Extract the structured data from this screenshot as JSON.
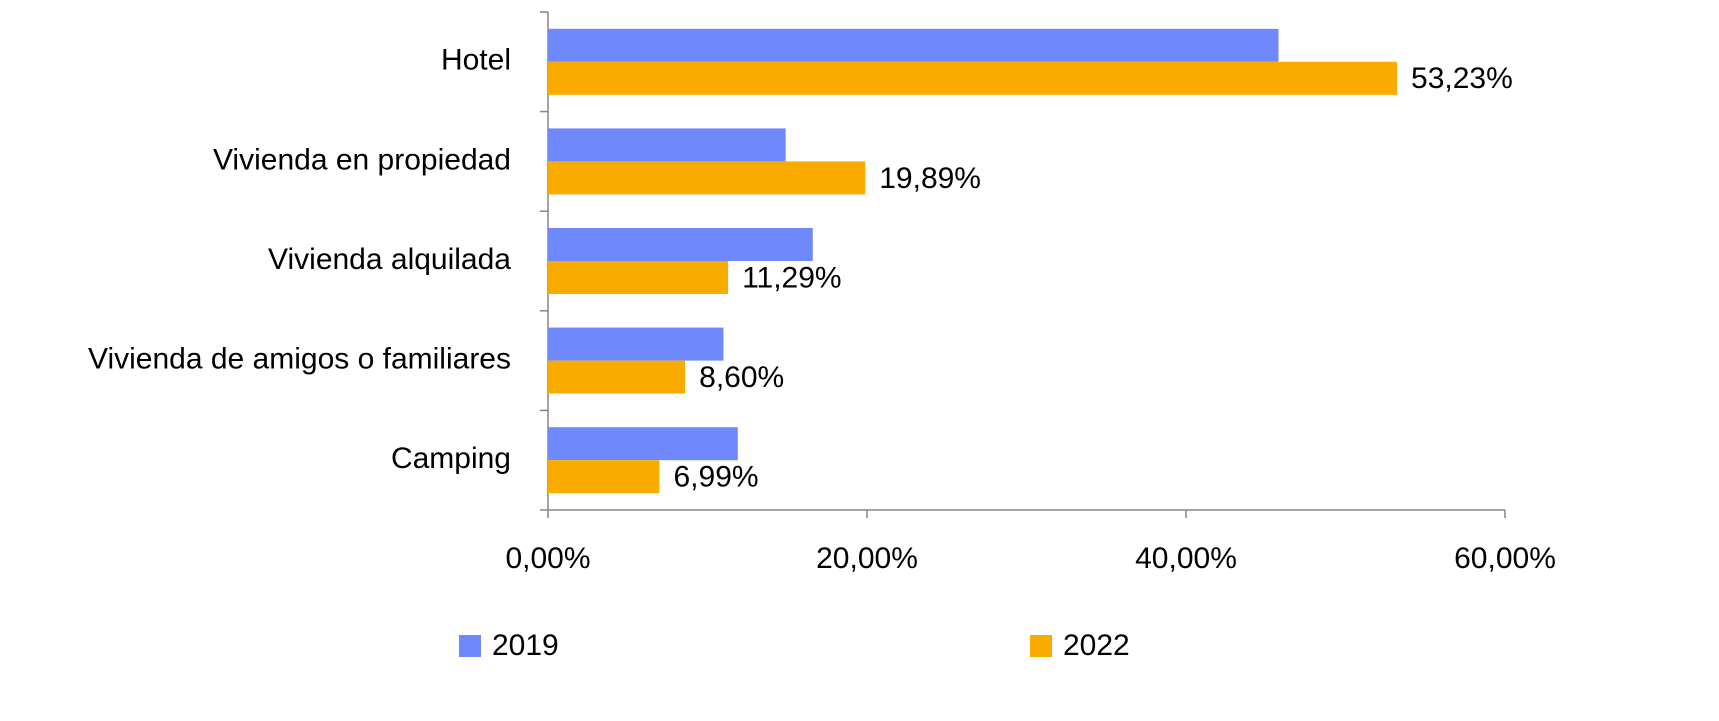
{
  "chart_data": {
    "type": "bar",
    "orientation": "horizontal",
    "categories": [
      "Hotel",
      "Vivienda en propiedad",
      "Vivienda alquilada",
      "Vivienda de amigos o familiares",
      "Camping"
    ],
    "series": [
      {
        "name": "2019",
        "color": "#6f88fc",
        "values": [
          45.8,
          14.9,
          16.6,
          11.0,
          11.9
        ]
      },
      {
        "name": "2022",
        "color": "#f9ab00",
        "values": [
          53.23,
          19.89,
          11.29,
          8.6,
          6.99
        ],
        "value_labels": [
          "53,23%",
          "19,89%",
          "11,29%",
          "8,60%",
          "6,99%"
        ]
      }
    ],
    "xlim": [
      0,
      60
    ],
    "xticks": [
      {
        "value": 0,
        "label": "0,00%"
      },
      {
        "value": 20,
        "label": "20,00%"
      },
      {
        "value": 40,
        "label": "40,00%"
      },
      {
        "value": 60,
        "label": "60,00%"
      }
    ],
    "grid": false,
    "legend": "bottom"
  }
}
